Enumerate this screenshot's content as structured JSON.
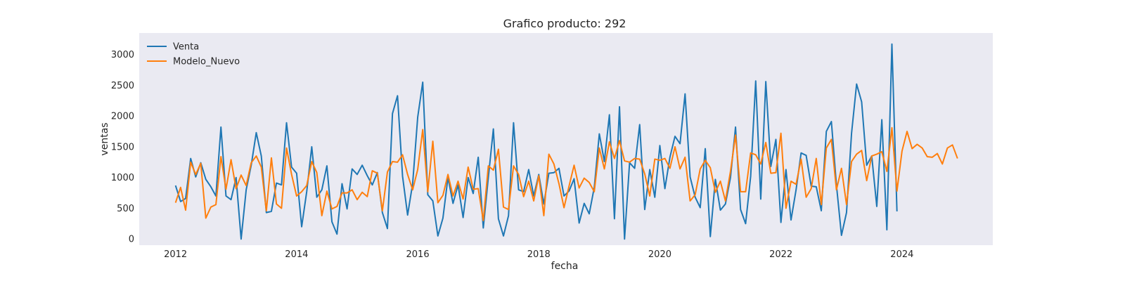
{
  "chart_data": {
    "type": "line",
    "title": "Grafico producto: 292",
    "xlabel": "fecha",
    "ylabel": "ventas",
    "xlim": [
      2011.4,
      2025.5
    ],
    "ylim": [
      -100,
      3350
    ],
    "x_ticks": [
      2012,
      2014,
      2016,
      2018,
      2020,
      2022,
      2024
    ],
    "x_tick_labels": [
      "2012",
      "2014",
      "2016",
      "2018",
      "2020",
      "2022",
      "2024"
    ],
    "y_ticks": [
      0,
      500,
      1000,
      1500,
      2000,
      2500,
      3000
    ],
    "y_tick_labels": [
      "0",
      "500",
      "1000",
      "1500",
      "2000",
      "2500",
      "3000"
    ],
    "legend_position": "top-left",
    "grid": false,
    "plot_background": "#eaeaf2",
    "series": [
      {
        "name": "Venta",
        "color": "#1f77b4",
        "start": "2012-01",
        "values": [
          870,
          610,
          660,
          1310,
          1010,
          1240,
          970,
          850,
          700,
          1820,
          700,
          640,
          1000,
          0,
          800,
          1200,
          1730,
          1350,
          430,
          450,
          910,
          880,
          1890,
          1170,
          1070,
          200,
          770,
          1500,
          680,
          800,
          1190,
          280,
          80,
          900,
          490,
          1140,
          1050,
          1200,
          1030,
          880,
          1080,
          430,
          170,
          2040,
          2330,
          1020,
          390,
          900,
          1980,
          2550,
          720,
          620,
          50,
          340,
          1000,
          580,
          880,
          350,
          1000,
          740,
          1330,
          180,
          1000,
          1790,
          330,
          50,
          380,
          1890,
          800,
          770,
          1130,
          700,
          1050,
          570,
          1070,
          1080,
          1150,
          700,
          780,
          980,
          260,
          580,
          410,
          840,
          1710,
          1260,
          2020,
          330,
          2150,
          0,
          1240,
          1150,
          1860,
          480,
          1130,
          680,
          1520,
          820,
          1330,
          1670,
          1550,
          2360,
          1010,
          680,
          510,
          1470,
          40,
          970,
          470,
          570,
          1000,
          1820,
          480,
          250,
          1020,
          2570,
          650,
          2560,
          1180,
          1620,
          270,
          1130,
          310,
          800,
          1400,
          1360,
          860,
          850,
          460,
          1750,
          1910,
          880,
          60,
          430,
          1720,
          2520,
          2230,
          1200,
          1350,
          530,
          1940,
          150,
          3170,
          450
        ]
      },
      {
        "name": "Modelo_Nuevo",
        "color": "#ff7f0e",
        "start": "2012-01",
        "values": [
          590,
          840,
          470,
          1250,
          1050,
          1230,
          340,
          520,
          560,
          1340,
          810,
          1290,
          820,
          1040,
          870,
          1240,
          1350,
          1170,
          460,
          1320,
          570,
          500,
          1480,
          1050,
          700,
          770,
          870,
          1260,
          1080,
          380,
          780,
          490,
          530,
          750,
          750,
          800,
          640,
          760,
          690,
          1110,
          1070,
          460,
          1090,
          1260,
          1250,
          1370,
          1050,
          800,
          1130,
          1780,
          770,
          1590,
          590,
          710,
          1050,
          700,
          940,
          650,
          1170,
          810,
          820,
          300,
          1190,
          1120,
          1460,
          520,
          480,
          1190,
          1050,
          690,
          940,
          620,
          1030,
          380,
          1380,
          1220,
          900,
          510,
          860,
          1200,
          830,
          990,
          920,
          770,
          1480,
          1140,
          1580,
          1310,
          1600,
          1270,
          1250,
          1310,
          1300,
          1060,
          700,
          1300,
          1280,
          1310,
          1150,
          1500,
          1140,
          1330,
          620,
          720,
          1140,
          1280,
          1160,
          760,
          940,
          620,
          1100,
          1690,
          770,
          770,
          1400,
          1370,
          1220,
          1570,
          1070,
          1080,
          1720,
          500,
          940,
          890,
          1300,
          680,
          820,
          1310,
          560,
          1480,
          1620,
          800,
          1150,
          560,
          1260,
          1380,
          1440,
          950,
          1350,
          1380,
          1420,
          1100,
          1810,
          780,
          1430,
          1750,
          1470,
          1540,
          1480,
          1340,
          1330,
          1390,
          1220,
          1480,
          1530,
          1310
        ]
      }
    ]
  }
}
